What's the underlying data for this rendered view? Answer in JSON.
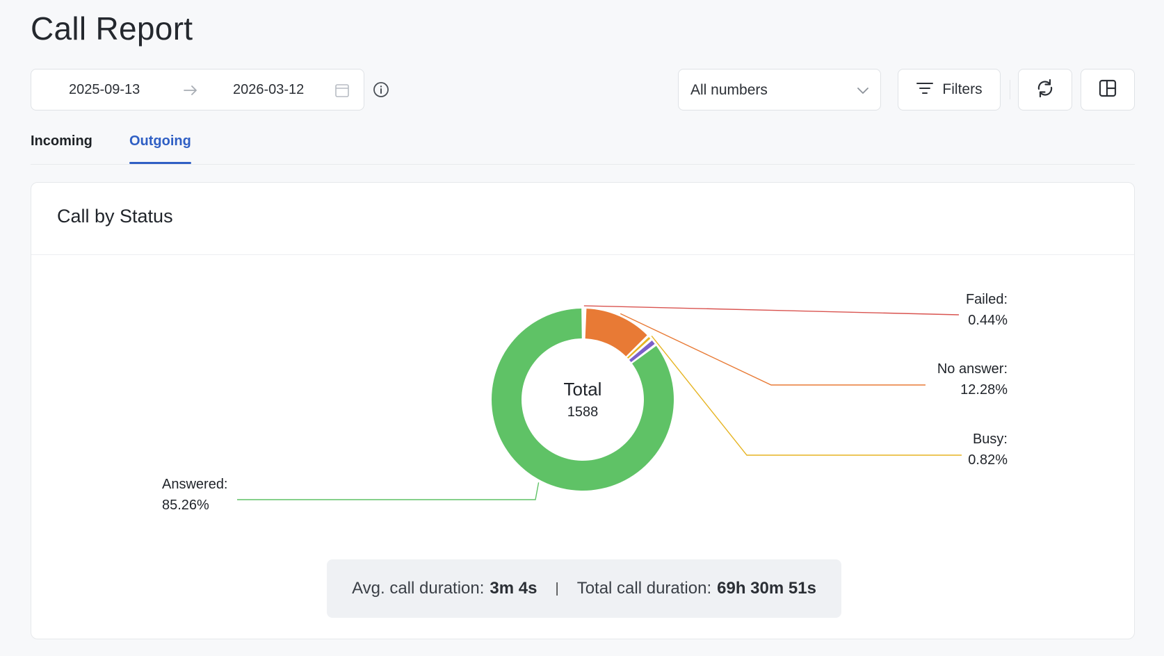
{
  "page": {
    "title": "Call Report"
  },
  "toolbar": {
    "date_start": "2025-09-13",
    "date_end": "2026-03-12",
    "number_select_value": "All numbers",
    "filters_label": "Filters"
  },
  "tabs": [
    {
      "label": "Incoming",
      "active": false
    },
    {
      "label": "Outgoing",
      "active": true
    }
  ],
  "card": {
    "title": "Call by Status"
  },
  "chart_data": {
    "type": "pie",
    "variant": "donut",
    "center_label": "Total",
    "center_value": "1588",
    "slices": [
      {
        "name": "Failed",
        "label": "Failed:",
        "percent_text": "0.44%",
        "value": 0.44,
        "color": "#d9534f"
      },
      {
        "name": "No answer",
        "label": "No answer:",
        "percent_text": "12.28%",
        "value": 12.28,
        "color": "#e87a35"
      },
      {
        "name": "Busy",
        "label": "Busy:",
        "percent_text": "0.82%",
        "value": 0.82,
        "color": "#e6b422"
      },
      {
        "name": "Other",
        "label": "",
        "percent_text": "",
        "value": 1.2,
        "color": "#7b5fc9"
      },
      {
        "name": "Answered",
        "label": "Answered:",
        "percent_text": "85.26%",
        "value": 85.26,
        "color": "#5fc266"
      }
    ]
  },
  "summary": {
    "avg_label": "Avg. call duration:",
    "avg_value": "3m 4s",
    "separator": "|",
    "total_label": "Total call duration:",
    "total_value": "69h 30m 51s"
  },
  "icons": {
    "range_arrow": "arrow-right-icon",
    "calendar": "calendar-icon",
    "info": "info-icon",
    "chevron": "chevron-down-icon",
    "filters": "filter-lines-icon",
    "refresh": "refresh-icon",
    "layout": "layout-icon"
  },
  "colors": {
    "accent": "#2f5fc4"
  }
}
